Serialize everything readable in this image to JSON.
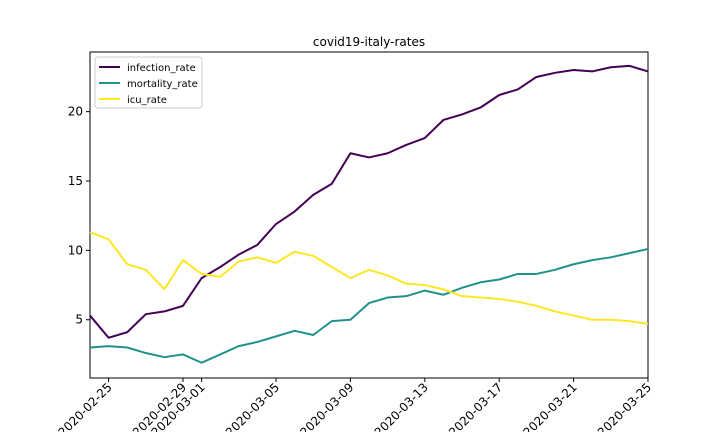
{
  "chart_data": {
    "type": "line",
    "title": "covid19-italy-rates",
    "xlabel": "",
    "ylabel": "",
    "x": [
      "2020-02-24",
      "2020-02-25",
      "2020-02-26",
      "2020-02-27",
      "2020-02-28",
      "2020-02-29",
      "2020-03-01",
      "2020-03-02",
      "2020-03-03",
      "2020-03-04",
      "2020-03-05",
      "2020-03-06",
      "2020-03-07",
      "2020-03-08",
      "2020-03-09",
      "2020-03-10",
      "2020-03-11",
      "2020-03-12",
      "2020-03-13",
      "2020-03-14",
      "2020-03-15",
      "2020-03-16",
      "2020-03-17",
      "2020-03-18",
      "2020-03-19",
      "2020-03-20",
      "2020-03-21",
      "2020-03-22",
      "2020-03-23",
      "2020-03-24",
      "2020-03-25"
    ],
    "xlim": [
      "2020-02-24",
      "2020-03-25"
    ],
    "xticks": [
      "2020-02-25",
      "2020-02-29",
      "2020-03-01",
      "2020-03-05",
      "2020-03-09",
      "2020-03-13",
      "2020-03-17",
      "2020-03-21",
      "2020-03-25"
    ],
    "yticks": [
      5,
      10,
      15,
      20
    ],
    "ylim": [
      0.8,
      24.3
    ],
    "grid": false,
    "legend_position": "top-left",
    "series": [
      {
        "name": "infection_rate",
        "color": "#440154",
        "values": [
          5.3,
          3.7,
          4.1,
          5.4,
          5.6,
          6.0,
          8.0,
          8.8,
          9.7,
          10.4,
          11.9,
          12.8,
          14.0,
          14.8,
          17.0,
          16.7,
          17.0,
          17.6,
          18.1,
          19.4,
          19.8,
          20.3,
          21.2,
          21.6,
          22.5,
          22.8,
          23.0,
          22.9,
          23.2,
          23.3,
          22.9
        ]
      },
      {
        "name": "mortality_rate",
        "color": "#21918c",
        "values": [
          3.0,
          3.1,
          3.0,
          2.6,
          2.3,
          2.5,
          1.9,
          2.5,
          3.1,
          3.4,
          3.8,
          4.2,
          3.9,
          4.9,
          5.0,
          6.2,
          6.6,
          6.7,
          7.1,
          6.8,
          7.3,
          7.7,
          7.9,
          8.3,
          8.3,
          8.6,
          9.0,
          9.3,
          9.5,
          9.8,
          10.1
        ]
      },
      {
        "name": "icu_rate",
        "color": "#fde725",
        "values": [
          11.3,
          10.8,
          9.0,
          8.6,
          7.2,
          9.3,
          8.3,
          8.1,
          9.2,
          9.5,
          9.1,
          9.9,
          9.6,
          8.8,
          8.0,
          8.6,
          8.2,
          7.6,
          7.5,
          7.2,
          6.7,
          6.6,
          6.5,
          6.3,
          6.0,
          5.6,
          5.3,
          5.0,
          5.0,
          4.9,
          4.7
        ]
      }
    ]
  }
}
